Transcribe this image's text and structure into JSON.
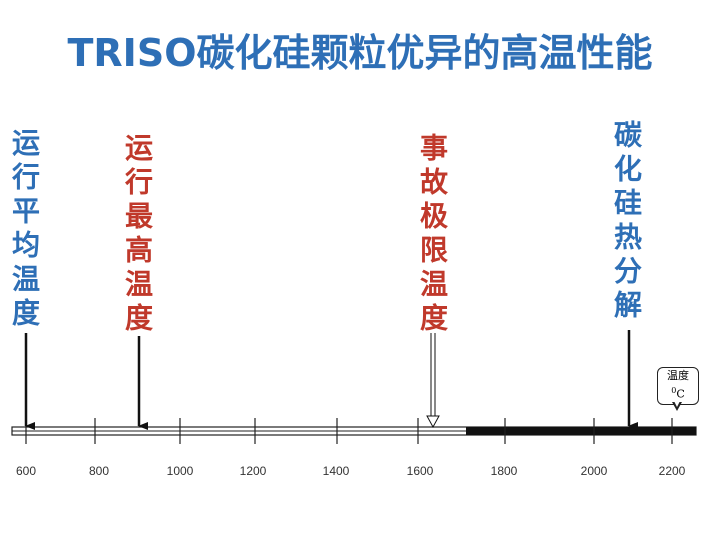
{
  "title": "TRISO碳化硅颗粒优异的高温性能",
  "markers": [
    {
      "label": "运行平均温度",
      "color": "#2e6fb6"
    },
    {
      "label": "运行最高温度",
      "color": "#c0392b"
    },
    {
      "label": "事故极限温度",
      "color": "#c0392b"
    },
    {
      "label": "碳化硅热分解",
      "color": "#2e6fb6"
    }
  ],
  "axis": {
    "ticks": [
      "600",
      "800",
      "1000",
      "1200",
      "1400",
      "1600",
      "1800",
      "2000",
      "2200"
    ],
    "unit_title": "温度",
    "unit_sup": "0",
    "unit_symbol": "C"
  },
  "colors": {
    "title": "#2e6fb6",
    "blue": "#2e6fb6",
    "red": "#c0392b"
  }
}
